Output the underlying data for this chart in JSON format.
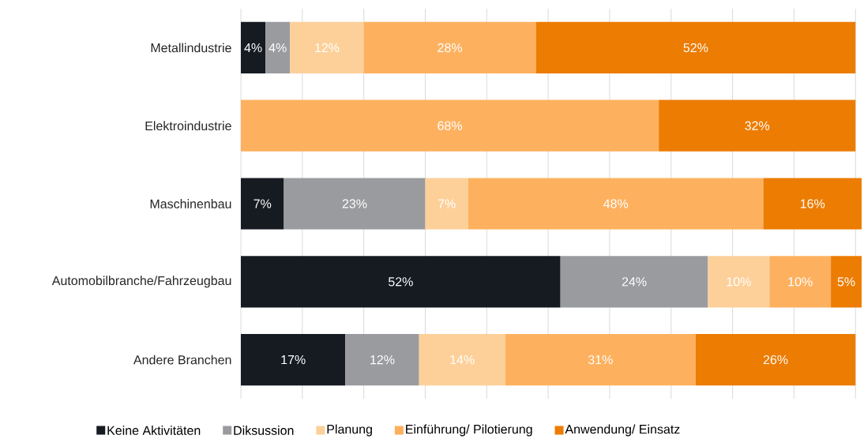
{
  "chart_data": {
    "type": "bar",
    "orientation": "horizontal",
    "stacked": true,
    "categories": [
      "Metallindustrie",
      "Elektroindustrie",
      "Maschinenbau",
      "Automobilbranche/Fahrzeugbau",
      "Andere Branchen"
    ],
    "series": [
      {
        "name": "Keine Aktivitäten",
        "color": "#161b22",
        "values": [
          4,
          null,
          7,
          52,
          17
        ],
        "value_labels": [
          "4%",
          null,
          "7%",
          "52%",
          "17%"
        ]
      },
      {
        "name": "Diksussion",
        "color": "#999b9e",
        "values": [
          4,
          null,
          23,
          24,
          12
        ],
        "value_labels": [
          "4%",
          null,
          "23%",
          "24%",
          "12%"
        ]
      },
      {
        "name": "Planung",
        "color": "#fdd09a",
        "values": [
          12,
          null,
          7,
          10,
          14
        ],
        "value_labels": [
          "12%",
          null,
          "7%",
          "10%",
          "14%"
        ]
      },
      {
        "name": "Einführung/ Pilotierung",
        "color": "#fdb15f",
        "values": [
          28,
          68,
          48,
          10,
          31
        ],
        "value_labels": [
          "28%",
          "68%",
          "48%",
          "10%",
          "31%"
        ]
      },
      {
        "name": "Anwendung/ Einsatz",
        "color": "#ec7c02",
        "values": [
          52,
          32,
          16,
          5,
          26
        ],
        "value_labels": [
          "52%",
          "32%",
          "16%",
          "5%",
          "26%"
        ]
      }
    ],
    "xlim": [
      0,
      101
    ],
    "xticks": [
      {
        "value": 0,
        "label": null
      },
      {
        "value": 10,
        "label": null
      },
      {
        "value": 20,
        "label": null
      },
      {
        "value": 30,
        "label": null
      },
      {
        "value": 40,
        "label": null
      },
      {
        "value": 50,
        "label": null
      },
      {
        "value": 60,
        "label": null
      },
      {
        "value": 70,
        "label": null
      },
      {
        "value": 80,
        "label": null
      },
      {
        "value": 90,
        "label": null
      },
      {
        "value": 100,
        "label": null
      }
    ],
    "grid": "x",
    "legend": "bottom",
    "tick_labels": "y"
  }
}
